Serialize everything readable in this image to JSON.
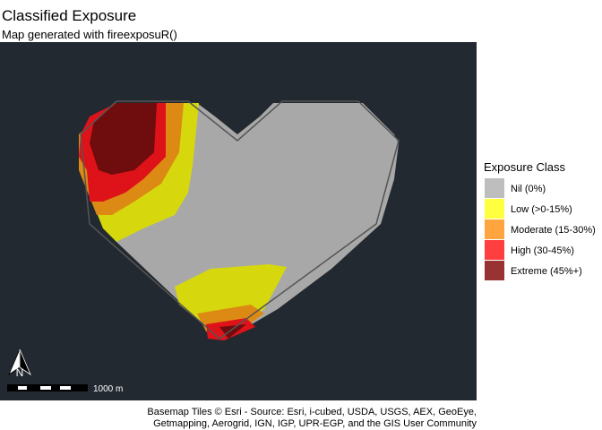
{
  "title": "Classified Exposure",
  "subtitle": "Map generated with fireexposuR()",
  "legend": {
    "title": "Exposure Class",
    "items": [
      {
        "label": "Nil (0%)",
        "color": "#bebebe"
      },
      {
        "label": "Low (>0-15%)",
        "color": "#ffff40"
      },
      {
        "label": "Moderate (15-30%)",
        "color": "#ffa53f"
      },
      {
        "label": "High (30-45%)",
        "color": "#ff3f3f"
      },
      {
        "label": "Extreme (45%+)",
        "color": "#993333"
      }
    ]
  },
  "north_arrow": "N",
  "scale_bar": "1000 m",
  "attribution": [
    "Basemap Tiles © Esri - Source: Esri, i-cubed, USDA, USGS, AEX, GeoEye,",
    "Getmapping, Aerogrid, IGN, IGP, UPR-EGP, and the GIS User Community"
  ]
}
